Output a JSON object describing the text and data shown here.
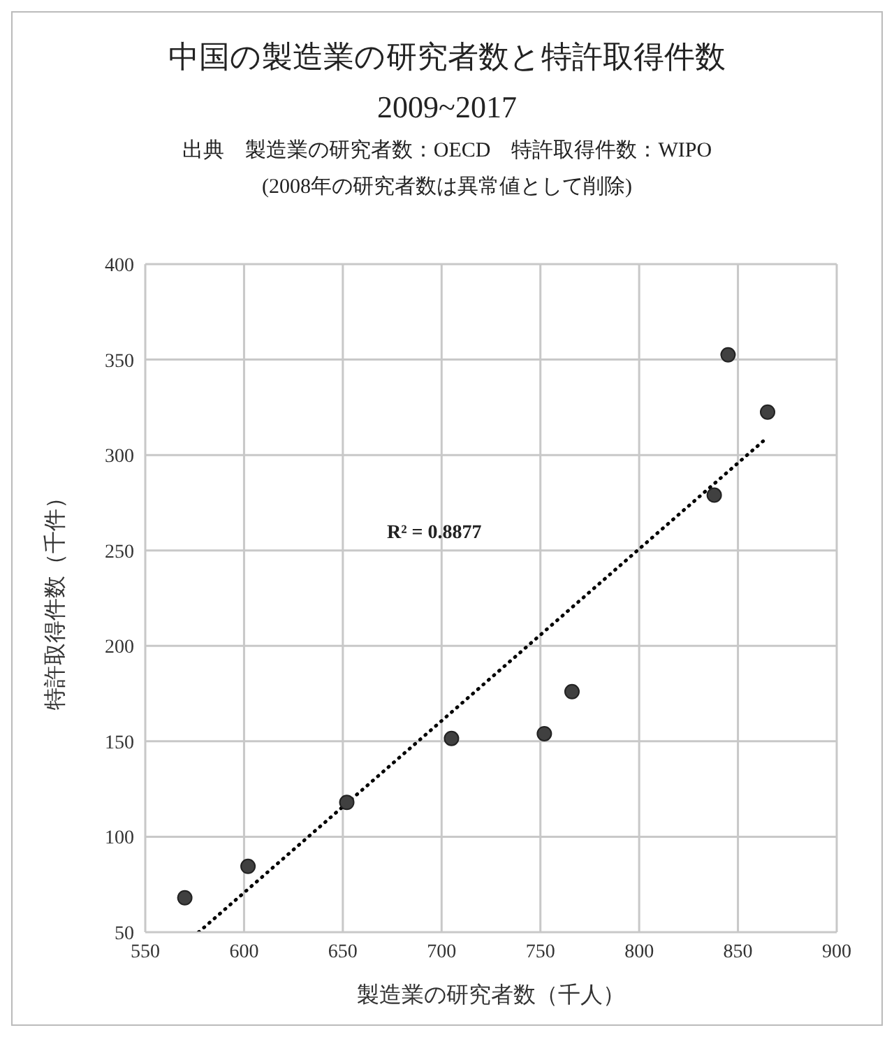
{
  "chart_data": {
    "type": "scatter",
    "title": "中国の製造業の研究者数と特許取得件数\n2009~2017",
    "subtitle": "出典　製造業の研究者数：OECD　特許取得件数：WIPO\n(2008年の研究者数は異常値として削除)",
    "xlabel": "製造業の研究者数（千人）",
    "ylabel": "特許取得件数（千件）",
    "series": [
      {
        "type": "scatter",
        "color": "#404040",
        "marker": "circle",
        "x": [
          570,
          602,
          652,
          705,
          752,
          766,
          838,
          845,
          865
        ],
        "values": [
          68,
          84.5,
          118,
          151.5,
          154,
          176,
          279,
          352.5,
          322.5
        ]
      },
      {
        "type": "line",
        "color": "#000000",
        "line_style": "dotted",
        "marker": "none",
        "x": [
          577,
          863
        ],
        "values": [
          50,
          307.5
        ]
      }
    ],
    "annotations": [
      "R² = 0.8877"
    ],
    "xlim": [
      550,
      900
    ],
    "xticks": [
      550,
      600,
      650,
      700,
      750,
      800,
      850,
      900
    ],
    "ylim": [
      50,
      400
    ],
    "yticks": [
      50,
      100,
      150,
      200,
      250,
      300,
      350,
      400
    ],
    "grid": true,
    "legend": false
  }
}
